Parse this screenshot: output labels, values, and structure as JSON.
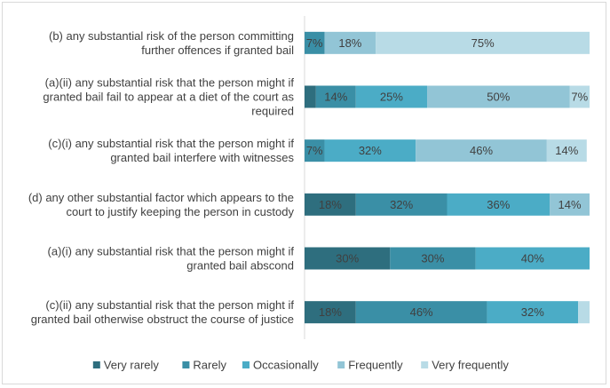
{
  "chart_data": {
    "type": "bar",
    "orientation": "horizontal",
    "stacked": true,
    "xlim": [
      0,
      100
    ],
    "grid": false,
    "legend_position": "bottom",
    "categories": [
      [
        "(b) any substantial risk of the person committing",
        "further offences if granted bail"
      ],
      [
        "(a)(ii) any substantial risk that the person might if",
        "granted bail fail to appear at a diet of the court as",
        "required"
      ],
      [
        "(c)(i) any substantial risk that the person might if",
        "granted bail interfere with witnesses"
      ],
      [
        "(d) any other substantial factor which appears to the",
        "court to justify keeping the person in custody"
      ],
      [
        "(a)(i) any substantial risk that the person might if",
        "granted bail abscond"
      ],
      [
        "(c)(ii) any substantial risk that the person might if",
        "granted bail otherwise obstruct the course of justice"
      ]
    ],
    "series": [
      {
        "name": "Very rarely",
        "color": "#2e6e7e",
        "values": [
          0,
          4,
          0,
          18,
          30,
          18
        ],
        "labels": [
          "",
          "",
          "",
          "18%",
          "30%",
          "18%"
        ]
      },
      {
        "name": "Rarely",
        "color": "#3a8fa6",
        "values": [
          7,
          14,
          7,
          32,
          30,
          46
        ],
        "labels": [
          "7%",
          "14%",
          "7%",
          "32%",
          "30%",
          "46%"
        ]
      },
      {
        "name": "Occasionally",
        "color": "#4bacc6",
        "values": [
          0,
          25,
          32,
          36,
          40,
          32
        ],
        "labels": [
          "",
          "25%",
          "32%",
          "36%",
          "40%",
          "32%"
        ]
      },
      {
        "name": "Frequently",
        "color": "#92c5d6",
        "values": [
          18,
          50,
          46,
          14,
          0,
          0
        ],
        "labels": [
          "18%",
          "50%",
          "46%",
          "14%",
          "",
          ""
        ]
      },
      {
        "name": "Very frequently",
        "color": "#b8dbe6",
        "values": [
          75,
          7,
          14,
          0,
          0,
          4
        ],
        "labels": [
          "75%",
          "7%",
          "14%",
          "",
          "",
          ""
        ]
      }
    ]
  }
}
